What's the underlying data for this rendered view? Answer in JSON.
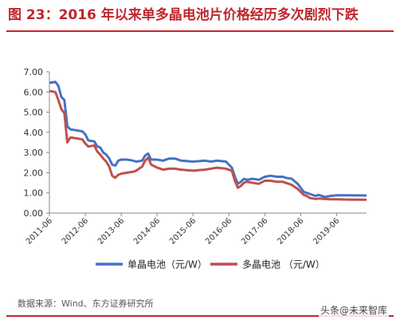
{
  "title": "图 23：2016 年以来单多晶电池片价格经历多次剧烈下跌",
  "source": "数据来源：Wind、东方证券研究所",
  "watermark": "头条@未来智库",
  "colors": {
    "accent": "#c0262d",
    "mono": "#4472c4",
    "multi": "#c0504d"
  },
  "chart_data": {
    "type": "line",
    "title": "",
    "xlabel": "",
    "ylabel": "",
    "ylim": [
      0,
      7
    ],
    "yticks": [
      "0.00",
      "1.00",
      "2.00",
      "3.00",
      "4.00",
      "5.00",
      "6.00",
      "7.00"
    ],
    "xticks": [
      "2011-06",
      "2012-06",
      "2013-06",
      "2014-06",
      "2015-06",
      "2016-06",
      "2017-06",
      "2018-06",
      "2019-06"
    ],
    "xrange": [
      "2011-06",
      "2020-04"
    ],
    "grid": false,
    "legend": "bottom",
    "series": [
      {
        "name": "单晶电池（元/W）",
        "color": "#4472c4",
        "points": [
          [
            "2011-06",
            6.45
          ],
          [
            "2011-08",
            6.5
          ],
          [
            "2011-09",
            6.3
          ],
          [
            "2011-10",
            5.75
          ],
          [
            "2011-11",
            5.6
          ],
          [
            "2011-12",
            4.3
          ],
          [
            "2012-01",
            4.15
          ],
          [
            "2012-03",
            4.1
          ],
          [
            "2012-05",
            4.05
          ],
          [
            "2012-06",
            3.9
          ],
          [
            "2012-07",
            3.6
          ],
          [
            "2012-09",
            3.55
          ],
          [
            "2012-10",
            3.3
          ],
          [
            "2012-11",
            3.25
          ],
          [
            "2012-12",
            3.0
          ],
          [
            "2013-01",
            2.9
          ],
          [
            "2013-02",
            2.7
          ],
          [
            "2013-03",
            2.4
          ],
          [
            "2013-04",
            2.35
          ],
          [
            "2013-05",
            2.6
          ],
          [
            "2013-06",
            2.65
          ],
          [
            "2013-08",
            2.65
          ],
          [
            "2013-10",
            2.6
          ],
          [
            "2013-11",
            2.55
          ],
          [
            "2014-01",
            2.6
          ],
          [
            "2014-02",
            2.85
          ],
          [
            "2014-03",
            2.95
          ],
          [
            "2014-04",
            2.65
          ],
          [
            "2014-06",
            2.65
          ],
          [
            "2014-08",
            2.6
          ],
          [
            "2014-10",
            2.7
          ],
          [
            "2014-12",
            2.7
          ],
          [
            "2015-02",
            2.6
          ],
          [
            "2015-06",
            2.55
          ],
          [
            "2015-10",
            2.6
          ],
          [
            "2015-12",
            2.55
          ],
          [
            "2016-02",
            2.6
          ],
          [
            "2016-05",
            2.55
          ],
          [
            "2016-07",
            2.25
          ],
          [
            "2016-08",
            1.8
          ],
          [
            "2016-09",
            1.45
          ],
          [
            "2016-10",
            1.55
          ],
          [
            "2016-11",
            1.7
          ],
          [
            "2016-12",
            1.65
          ],
          [
            "2017-02",
            1.7
          ],
          [
            "2017-04",
            1.65
          ],
          [
            "2017-06",
            1.8
          ],
          [
            "2017-08",
            1.85
          ],
          [
            "2017-10",
            1.8
          ],
          [
            "2017-12",
            1.8
          ],
          [
            "2018-01",
            1.75
          ],
          [
            "2018-03",
            1.7
          ],
          [
            "2018-05",
            1.45
          ],
          [
            "2018-06",
            1.25
          ],
          [
            "2018-07",
            1.05
          ],
          [
            "2018-08",
            1.0
          ],
          [
            "2018-09",
            0.95
          ],
          [
            "2018-11",
            0.85
          ],
          [
            "2018-12",
            0.9
          ],
          [
            "2019-02",
            0.8
          ],
          [
            "2019-04",
            0.85
          ],
          [
            "2019-06",
            0.88
          ],
          [
            "2019-10",
            0.88
          ],
          [
            "2020-04",
            0.87
          ]
        ]
      },
      {
        "name": "多晶电池 （元/W）",
        "color": "#c0504d",
        "points": [
          [
            "2011-06",
            6.05
          ],
          [
            "2011-08",
            6.0
          ],
          [
            "2011-09",
            5.6
          ],
          [
            "2011-10",
            5.15
          ],
          [
            "2011-11",
            4.95
          ],
          [
            "2011-12",
            3.5
          ],
          [
            "2012-01",
            3.75
          ],
          [
            "2012-03",
            3.7
          ],
          [
            "2012-05",
            3.65
          ],
          [
            "2012-06",
            3.45
          ],
          [
            "2012-07",
            3.3
          ],
          [
            "2012-09",
            3.35
          ],
          [
            "2012-10",
            3.05
          ],
          [
            "2012-11",
            2.9
          ],
          [
            "2012-12",
            2.7
          ],
          [
            "2013-01",
            2.55
          ],
          [
            "2013-02",
            2.3
          ],
          [
            "2013-03",
            1.85
          ],
          [
            "2013-04",
            1.75
          ],
          [
            "2013-05",
            1.9
          ],
          [
            "2013-06",
            1.95
          ],
          [
            "2013-08",
            2.0
          ],
          [
            "2013-10",
            2.05
          ],
          [
            "2013-11",
            2.1
          ],
          [
            "2014-01",
            2.3
          ],
          [
            "2014-02",
            2.6
          ],
          [
            "2014-03",
            2.75
          ],
          [
            "2014-04",
            2.4
          ],
          [
            "2014-06",
            2.25
          ],
          [
            "2014-08",
            2.15
          ],
          [
            "2014-10",
            2.2
          ],
          [
            "2014-12",
            2.2
          ],
          [
            "2015-02",
            2.15
          ],
          [
            "2015-06",
            2.1
          ],
          [
            "2015-10",
            2.15
          ],
          [
            "2015-12",
            2.2
          ],
          [
            "2016-02",
            2.25
          ],
          [
            "2016-05",
            2.2
          ],
          [
            "2016-07",
            2.1
          ],
          [
            "2016-08",
            1.6
          ],
          [
            "2016-09",
            1.25
          ],
          [
            "2016-10",
            1.35
          ],
          [
            "2016-11",
            1.5
          ],
          [
            "2016-12",
            1.55
          ],
          [
            "2017-02",
            1.5
          ],
          [
            "2017-04",
            1.45
          ],
          [
            "2017-06",
            1.6
          ],
          [
            "2017-08",
            1.6
          ],
          [
            "2017-10",
            1.55
          ],
          [
            "2017-12",
            1.55
          ],
          [
            "2018-01",
            1.5
          ],
          [
            "2018-03",
            1.4
          ],
          [
            "2018-05",
            1.2
          ],
          [
            "2018-06",
            1.05
          ],
          [
            "2018-07",
            0.9
          ],
          [
            "2018-08",
            0.85
          ],
          [
            "2018-09",
            0.75
          ],
          [
            "2018-11",
            0.7
          ],
          [
            "2018-12",
            0.72
          ],
          [
            "2019-02",
            0.7
          ],
          [
            "2019-04",
            0.68
          ],
          [
            "2019-06",
            0.68
          ],
          [
            "2019-10",
            0.67
          ],
          [
            "2020-04",
            0.66
          ]
        ]
      }
    ]
  }
}
